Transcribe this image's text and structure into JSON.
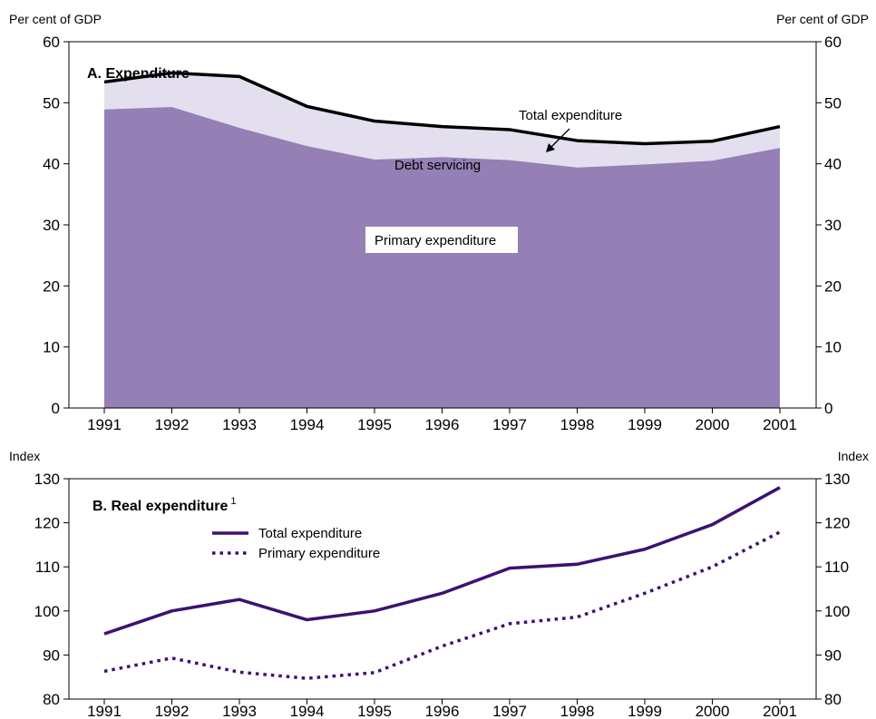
{
  "chart_data": [
    {
      "type": "area",
      "title": "A. Expenditure",
      "left_unit_label": "Per cent of GDP",
      "right_unit_label": "Per cent of GDP",
      "x": [
        "1991",
        "1992",
        "1993",
        "1994",
        "1995",
        "1996",
        "1997",
        "1998",
        "1999",
        "2000",
        "2001"
      ],
      "ylim": [
        0,
        60
      ],
      "yticks": [
        "0",
        "10",
        "20",
        "30",
        "40",
        "50",
        "60"
      ],
      "stacked": true,
      "series": [
        {
          "name": "Primary expenditure",
          "color": "#9480b4",
          "values": [
            48.9,
            49.3,
            45.9,
            42.9,
            40.7,
            41.1,
            40.6,
            39.4,
            39.9,
            40.5,
            42.6
          ]
        },
        {
          "name": "Debt servicing",
          "color": "#e4dfee",
          "values": [
            4.5,
            5.6,
            8.4,
            6.5,
            6.3,
            5.0,
            5.0,
            4.4,
            3.4,
            3.2,
            3.5
          ]
        }
      ],
      "total_line": {
        "name": "Total expenditure",
        "color": "#000000",
        "values": [
          53.4,
          54.9,
          54.3,
          49.4,
          47.0,
          46.1,
          45.6,
          43.8,
          43.3,
          43.7,
          46.1
        ]
      },
      "annotations": {
        "total": "Total expenditure",
        "debt": "Debt servicing",
        "primary": "Primary expenditure"
      }
    },
    {
      "type": "line",
      "title": "B. Real expenditure",
      "title_superscript": "1",
      "left_unit_label": "Index",
      "right_unit_label": "Index",
      "x": [
        "1991",
        "1992",
        "1993",
        "1994",
        "1995",
        "1996",
        "1997",
        "1998",
        "1999",
        "2000",
        "2001"
      ],
      "ylim": [
        80,
        130
      ],
      "yticks": [
        "80",
        "90",
        "100",
        "110",
        "120",
        "130"
      ],
      "series": [
        {
          "name": "Total expenditure",
          "style": "solid",
          "color": "#3d1173",
          "values": [
            94.8,
            100.0,
            102.6,
            98.0,
            100.0,
            104.0,
            109.7,
            110.6,
            114.0,
            119.6,
            128.0
          ]
        },
        {
          "name": "Primary expenditure",
          "style": "dotted",
          "color": "#3d1173",
          "values": [
            86.3,
            89.3,
            86.1,
            84.7,
            86.0,
            92.0,
            97.1,
            98.6,
            104.0,
            110.0,
            117.9
          ]
        }
      ]
    }
  ]
}
